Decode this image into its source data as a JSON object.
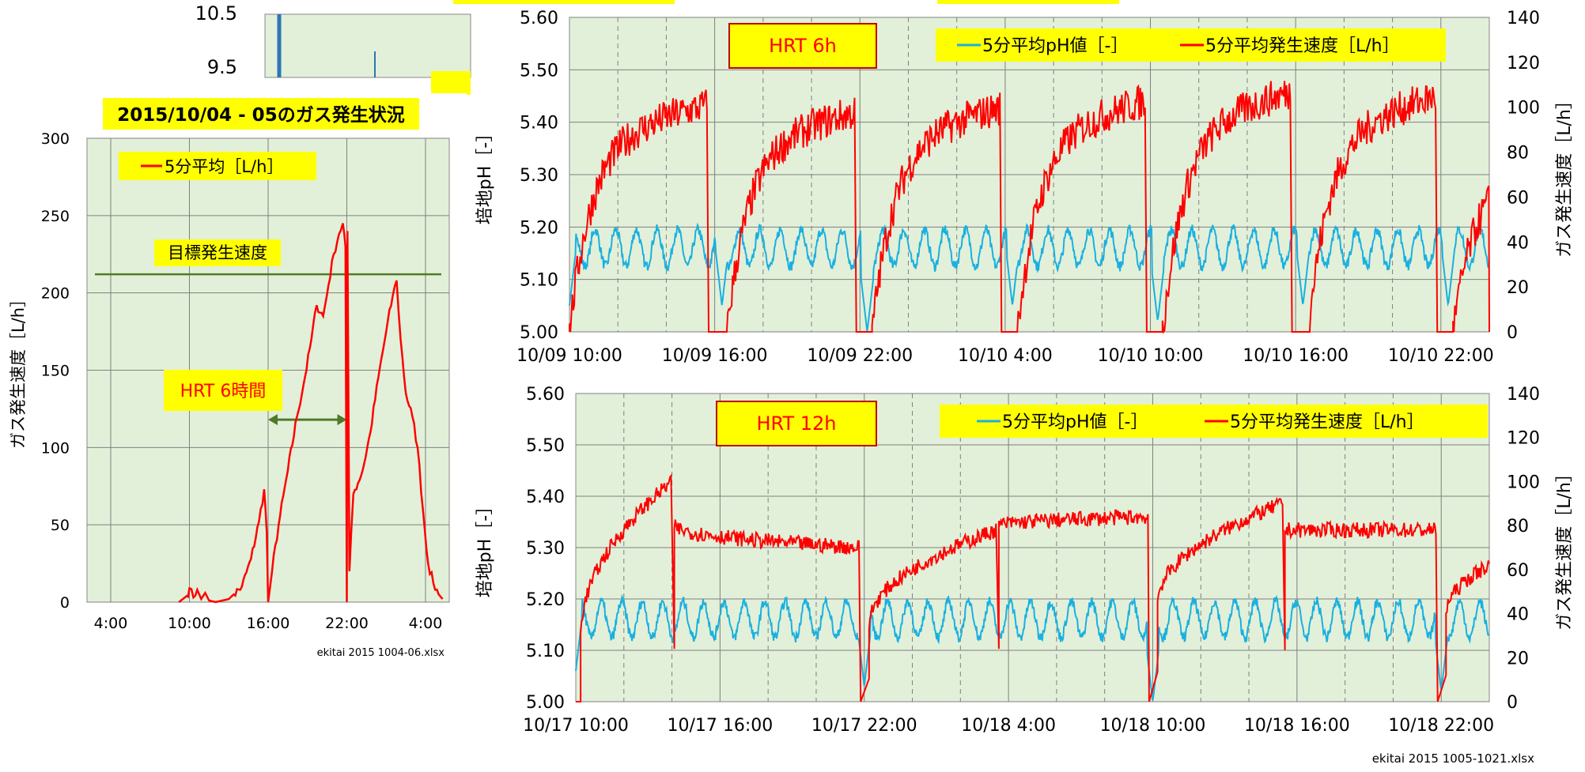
{
  "colors": {
    "plot_bg": "#e2f0d9",
    "grid": "#7f7f7f",
    "ph_series": "#1ab0e0",
    "gas_series": "#ff0000",
    "target_line": "#4f7a28",
    "highlight": "#ffff00",
    "alt_bar_series": "#2e75b6"
  },
  "chart_data": [
    {
      "id": "left",
      "type": "line",
      "title": "2015/10/04 - 05のガス発生状況",
      "ylabel": "ガス発生速度［L/h］",
      "ylim": [
        0,
        300
      ],
      "yticks": [
        0,
        50,
        100,
        150,
        200,
        250,
        300
      ],
      "x_unit": "hours_since_2015-10-04_04:00",
      "xlim": [
        0,
        24
      ],
      "xtick_labels": [
        "4:00",
        "10:00",
        "16:00",
        "22:00",
        "4:00"
      ],
      "xtick_values": [
        0,
        6,
        12,
        18,
        24
      ],
      "legend": "5分平均［L/h］",
      "target_label": "目標発生速度",
      "target_value": 212,
      "annotation": "HRT 6時間",
      "footnote": "ekitai 2015 1004-06.xlsx",
      "series": [
        {
          "name": "5分平均［L/h］",
          "points": [
            [
              5.2,
              0
            ],
            [
              5.5,
              2
            ],
            [
              5.8,
              4
            ],
            [
              6.0,
              9
            ],
            [
              6.3,
              3
            ],
            [
              6.6,
              8
            ],
            [
              6.9,
              2
            ],
            [
              7.2,
              6
            ],
            [
              7.5,
              1
            ],
            [
              8.0,
              0
            ],
            [
              9.0,
              2
            ],
            [
              10.0,
              10
            ],
            [
              10.7,
              28
            ],
            [
              11.3,
              52
            ],
            [
              11.7,
              73
            ],
            [
              11.9,
              45
            ],
            [
              12.0,
              0
            ],
            [
              12.3,
              20
            ],
            [
              12.8,
              50
            ],
            [
              13.5,
              85
            ],
            [
              14.2,
              120
            ],
            [
              14.8,
              145
            ],
            [
              15.3,
              170
            ],
            [
              15.7,
              192
            ],
            [
              16.2,
              185
            ],
            [
              16.6,
              205
            ],
            [
              17.0,
              225
            ],
            [
              17.4,
              238
            ],
            [
              17.7,
              245
            ],
            [
              17.9,
              230
            ],
            [
              18.0,
              0
            ],
            [
              18.05,
              240
            ],
            [
              18.2,
              20
            ],
            [
              18.5,
              70
            ],
            [
              19.2,
              85
            ],
            [
              19.8,
              110
            ],
            [
              20.4,
              145
            ],
            [
              21.0,
              175
            ],
            [
              21.5,
              198
            ],
            [
              21.8,
              208
            ],
            [
              22.1,
              170
            ],
            [
              22.5,
              135
            ],
            [
              23.0,
              120
            ],
            [
              23.4,
              100
            ],
            [
              23.8,
              60
            ],
            [
              24.2,
              25
            ],
            [
              24.6,
              12
            ],
            [
              25.0,
              5
            ],
            [
              25.3,
              2
            ]
          ]
        }
      ]
    },
    {
      "id": "top",
      "type": "line",
      "ylabel_left": "培地pH［-］",
      "ylabel_right": "ガス発生速度［L/h］",
      "ylim_left": [
        5.0,
        5.6
      ],
      "ylim_right": [
        0,
        140
      ],
      "yticks_left": [
        "5.00",
        "5.10",
        "5.20",
        "5.30",
        "5.40",
        "5.50",
        "5.60"
      ],
      "yticks_right": [
        0,
        20,
        40,
        60,
        80,
        100,
        120,
        140
      ],
      "x_unit": "hours_since_2015-10-09_10:00",
      "xlim": [
        0,
        38
      ],
      "xtick_labels": [
        "10/09 10:00",
        "10/09 16:00",
        "10/09 22:00",
        "10/10 4:00",
        "10/10 10:00",
        "10/10 16:00",
        "10/10 22:00"
      ],
      "xtick_values": [
        0,
        6,
        12,
        18,
        24,
        30,
        36
      ],
      "hrt_label": "HRT 6h",
      "legend": [
        "5分平均pH値［-］",
        "5分平均発生速度［L/h］"
      ],
      "series": [
        {
          "name": "5分平均pH値［-］",
          "mean": 5.16,
          "amplitude": 0.035,
          "period_hours": 0.85,
          "dips": [
            [
              0,
              5.05
            ],
            [
              6.3,
              5.05
            ],
            [
              12.3,
              5.0
            ],
            [
              18.3,
              5.05
            ],
            [
              24.3,
              5.02
            ],
            [
              30.3,
              5.05
            ],
            [
              36.3,
              5.05
            ]
          ]
        },
        {
          "name": "5分平均発生速度［L/h］",
          "cycles": [
            {
              "start": 0.0,
              "end": 5.7,
              "level": 100
            },
            {
              "start": 6.5,
              "end": 11.8,
              "level": 98
            },
            {
              "start": 12.5,
              "end": 17.8,
              "level": 100
            },
            {
              "start": 18.5,
              "end": 23.8,
              "level": 103
            },
            {
              "start": 24.5,
              "end": 29.8,
              "level": 107
            },
            {
              "start": 30.5,
              "end": 35.8,
              "level": 105
            },
            {
              "start": 36.5,
              "end": 38.0,
              "level": 80
            }
          ]
        }
      ]
    },
    {
      "id": "bottom",
      "type": "line",
      "ylabel_left": "培地pH［-］",
      "ylabel_right": "ガス発生速度［L/h］",
      "ylim_left": [
        5.0,
        5.6
      ],
      "ylim_right": [
        0,
        140
      ],
      "yticks_left": [
        "5.00",
        "5.10",
        "5.20",
        "5.30",
        "5.40",
        "5.50",
        "5.60"
      ],
      "yticks_right": [
        0,
        20,
        40,
        60,
        80,
        100,
        120,
        140
      ],
      "x_unit": "hours_since_2015-10-17_10:00",
      "xlim": [
        0,
        38
      ],
      "xtick_labels": [
        "10/17 10:00",
        "10/17 16:00",
        "10/17 22:00",
        "10/18 4:00",
        "10/18 10:00",
        "10/18 16:00",
        "10/18 22:00"
      ],
      "xtick_values": [
        0,
        6,
        12,
        18,
        24,
        30,
        36
      ],
      "hrt_label": "HRT 12h",
      "legend": [
        "5分平均pH値［-］",
        "5分平均発生速度［L/h］"
      ],
      "footnote": "ekitai 2015 1005-1021.xlsx",
      "series": [
        {
          "name": "5分平均pH値［-］",
          "mean": 5.16,
          "amplitude": 0.035,
          "period_hours": 0.85,
          "dips": [
            [
              0,
              5.06
            ],
            [
              12.0,
              5.03
            ],
            [
              24.0,
              5.0
            ],
            [
              36.0,
              5.02
            ]
          ]
        },
        {
          "name": "5分平均発生速度［L/h］",
          "segments": [
            {
              "start": 0.2,
              "end": 4.0,
              "v0": 30,
              "v1": 100
            },
            {
              "start": 4.1,
              "end": 11.8,
              "v0": 80,
              "v1": 70
            },
            {
              "start": 12.2,
              "end": 17.5,
              "v0": 35,
              "v1": 78
            },
            {
              "start": 17.6,
              "end": 23.8,
              "v0": 80,
              "v1": 84
            },
            {
              "start": 24.2,
              "end": 29.4,
              "v0": 45,
              "v1": 90
            },
            {
              "start": 29.5,
              "end": 35.8,
              "v0": 78,
              "v1": 78
            },
            {
              "start": 36.2,
              "end": 38.0,
              "v0": 40,
              "v1": 62
            }
          ]
        }
      ]
    },
    {
      "id": "background",
      "type": "bar",
      "yticks": [
        "10.5",
        "9.5"
      ]
    }
  ]
}
